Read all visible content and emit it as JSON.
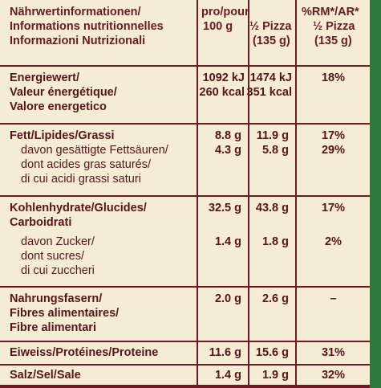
{
  "header": {
    "title_lines": [
      "Nährwertinformationen/",
      "Informations nutritionnelles",
      "Informazioni Nutrizionali"
    ],
    "col1_lines": [
      "pro/pour/per",
      "100 g"
    ],
    "col2_lines": [
      "½ Pizza",
      "(135 g)"
    ],
    "col3_lines": [
      "%RM*/AR*",
      "½ Pizza",
      "(135 g)"
    ]
  },
  "energy": {
    "label_lines": [
      "Energiewert/",
      "Valeur énergétique/",
      "Valore energetico"
    ],
    "per100_lines": [
      "1092 kJ",
      "260 kcal"
    ],
    "perhalf_lines": [
      "1474 kJ",
      "351 kcal"
    ],
    "rm": "18%"
  },
  "fat": {
    "label": "Fett/Lipides/Grassi",
    "per100": "8.8 g",
    "perhalf": "11.9 g",
    "rm": "17%",
    "sub_label_lines": [
      "davon gesättigte Fettsäuren/",
      "dont acides gras saturés/",
      "di cui acidi grassi saturi"
    ],
    "sub_per100": "4.3 g",
    "sub_perhalf": "5.8 g",
    "sub_rm": "29%"
  },
  "carbs": {
    "label_lines": [
      "Kohlenhydrate/Glucides/",
      "Carboidrati"
    ],
    "per100": "32.5 g",
    "perhalf": "43.8 g",
    "rm": "17%",
    "sub_label_lines": [
      "davon Zucker/",
      "dont sucres/",
      "di cui zuccheri"
    ],
    "sub_per100": "1.4 g",
    "sub_perhalf": "1.8 g",
    "sub_rm": "2%"
  },
  "fibre": {
    "label_lines": [
      "Nahrungsfasern/",
      "Fibres alimentaires/",
      "Fibre alimentari"
    ],
    "per100": "2.0 g",
    "perhalf": "2.6 g",
    "rm": "–"
  },
  "protein": {
    "label": "Eiweiss/Protéines/Proteine",
    "per100": "11.6 g",
    "perhalf": "15.6 g",
    "rm": "31%"
  },
  "salt": {
    "label": "Salz/Sel/Sale",
    "per100": "1.4 g",
    "perhalf": "1.9 g",
    "rm": "32%"
  },
  "colors": {
    "background": "#6f1a22",
    "panel": "#f4ecd5",
    "text": "#5a1418",
    "accent_green": "#2e7a3c"
  }
}
